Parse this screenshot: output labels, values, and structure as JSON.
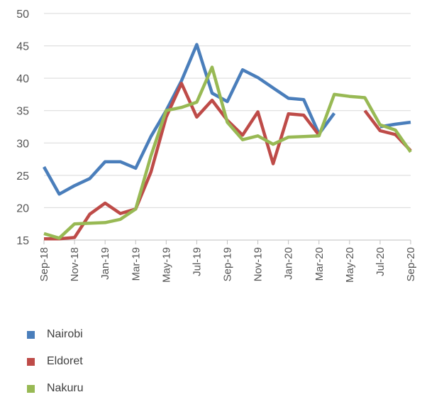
{
  "chart_data": {
    "type": "line",
    "title": "",
    "xlabel": "",
    "ylabel": "",
    "ylim": [
      15,
      50
    ],
    "yticks": [
      15,
      20,
      25,
      30,
      35,
      40,
      45,
      50
    ],
    "grid": true,
    "legend_position": "bottom-left",
    "x": [
      "Sep-18",
      "Oct-18",
      "Nov-18",
      "Dec-18",
      "Jan-19",
      "Feb-19",
      "Mar-19",
      "Apr-19",
      "May-19",
      "Jun-19",
      "Jul-19",
      "Aug-19",
      "Sep-19",
      "Oct-19",
      "Nov-19",
      "Dec-19",
      "Jan-20",
      "Feb-20",
      "Mar-20",
      "Apr-20",
      "May-20",
      "Jun-20",
      "Jul-20",
      "Aug-20",
      "Sep-20"
    ],
    "xtick_labels": [
      "Sep-18",
      "Nov-18",
      "Jan-19",
      "Mar-19",
      "May-19",
      "Jul-19",
      "Sep-19",
      "Nov-19",
      "Jan-20",
      "Mar-20",
      "May-20",
      "Jul-20",
      "Sep-20"
    ],
    "series": [
      {
        "name": "Nairobi",
        "color": "#4a7ebb",
        "values": [
          26.3,
          22.1,
          23.4,
          24.5,
          27.1,
          27.1,
          26.1,
          31.0,
          35.0,
          39.6,
          45.2,
          37.7,
          36.4,
          41.3,
          40.1,
          38.5,
          36.9,
          36.7,
          31.4,
          34.6,
          null,
          null,
          32.5,
          32.9,
          33.2
        ]
      },
      {
        "name": "Eldoret",
        "color": "#be4b48",
        "values": [
          15.2,
          15.2,
          15.4,
          19.0,
          20.7,
          19.1,
          19.8,
          25.5,
          34.0,
          39.2,
          34.0,
          36.6,
          33.5,
          31.2,
          34.8,
          26.8,
          34.5,
          34.3,
          31.2,
          null,
          null,
          35.0,
          31.9,
          31.3,
          28.8
        ]
      },
      {
        "name": "Nakuru",
        "color": "#98b954",
        "values": [
          16.0,
          15.3,
          17.5,
          17.6,
          17.7,
          18.2,
          19.8,
          28.0,
          35.0,
          35.5,
          36.3,
          41.7,
          33.2,
          30.5,
          31.1,
          29.8,
          30.9,
          31.0,
          31.1,
          37.5,
          37.2,
          37.0,
          32.8,
          32.0,
          28.6
        ]
      }
    ]
  }
}
